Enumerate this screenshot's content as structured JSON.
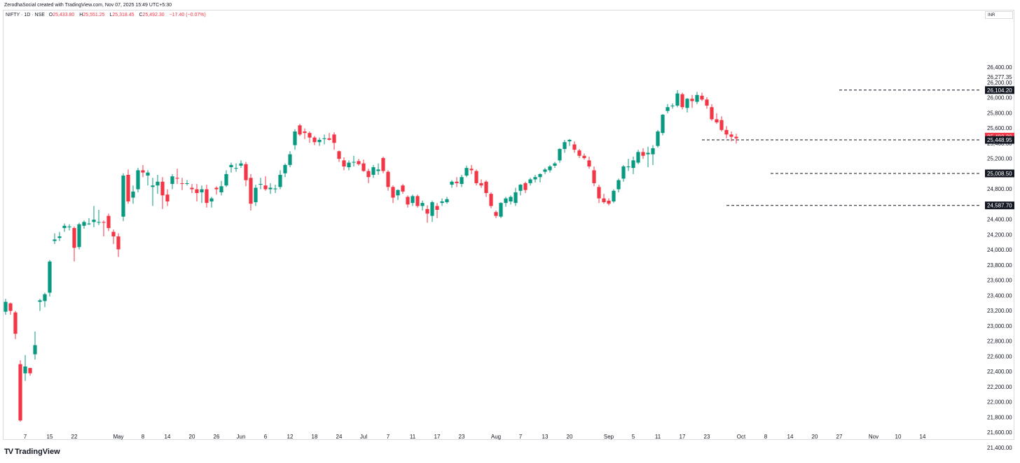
{
  "credit": "ZerodhaSocial created with TradingView.com, Nov 07, 2025 15:49 UTC+5:30",
  "legend": {
    "symbol": "NIFTY · 1D · NSE",
    "open_label": "O",
    "open": "25,433.80",
    "high_label": "H",
    "high": "25,551.25",
    "low_label": "L",
    "low": "25,318.45",
    "close_label": "C",
    "close": "25,492.30",
    "change": "−17.40 (−0.07%)"
  },
  "currency": "INR",
  "brand": {
    "logo": "TV",
    "name": "TradingView"
  },
  "colors": {
    "up": "#089981",
    "down": "#f23645",
    "grid": "#f0f3fa",
    "text": "#131722"
  },
  "chart_data": {
    "type": "candlestick",
    "y_axis_side": "right",
    "ylim": [
      21400,
      26500
    ],
    "y_ticks": [
      21400,
      21600,
      21800,
      22000,
      22200,
      22400,
      22600,
      22800,
      23000,
      23200,
      23400,
      23600,
      23800,
      24000,
      24200,
      24400,
      24600,
      24800,
      25000,
      25200,
      25400,
      25600,
      25800,
      26000,
      26200,
      26400
    ],
    "y_tick_labels": [
      "21,400.00",
      "21,600.00",
      "21,800.00",
      "22,000.00",
      "22,200.00",
      "22,400.00",
      "22,600.00",
      "22,800.00",
      "23,000.00",
      "23,200.00",
      "23,400.00",
      "23,600.00",
      "23,800.00",
      "24,000.00",
      "24,200.00",
      "24,400.00",
      "24,600.00",
      "24,800.00",
      "25,000.00",
      "25,200.00",
      "25,400.00",
      "25,600.00",
      "25,800.00",
      "26,000.00",
      "26,200.00",
      "26,400.00"
    ],
    "x_tick_labels": [
      {
        "i": 4,
        "label": "7"
      },
      {
        "i": 9,
        "label": "15"
      },
      {
        "i": 14,
        "label": "22"
      },
      {
        "i": 23,
        "label": "May"
      },
      {
        "i": 28,
        "label": "8"
      },
      {
        "i": 33,
        "label": "14"
      },
      {
        "i": 38,
        "label": "20"
      },
      {
        "i": 43,
        "label": "26"
      },
      {
        "i": 48,
        "label": "Jun"
      },
      {
        "i": 53,
        "label": "6"
      },
      {
        "i": 58,
        "label": "12"
      },
      {
        "i": 63,
        "label": "18"
      },
      {
        "i": 68,
        "label": "24"
      },
      {
        "i": 73,
        "label": "Jul"
      },
      {
        "i": 78,
        "label": "7"
      },
      {
        "i": 83,
        "label": "11"
      },
      {
        "i": 88,
        "label": "17"
      },
      {
        "i": 93,
        "label": "23"
      },
      {
        "i": 100,
        "label": "Aug"
      },
      {
        "i": 105,
        "label": "7"
      },
      {
        "i": 110,
        "label": "13"
      },
      {
        "i": 115,
        "label": "20"
      },
      {
        "i": 123,
        "label": "Sep"
      },
      {
        "i": 128,
        "label": "5"
      },
      {
        "i": 133,
        "label": "11"
      },
      {
        "i": 138,
        "label": "17"
      },
      {
        "i": 143,
        "label": "23"
      },
      {
        "i": 150,
        "label": "Oct"
      },
      {
        "i": 155,
        "label": "8"
      },
      {
        "i": 160,
        "label": "14"
      },
      {
        "i": 165,
        "label": "20"
      },
      {
        "i": 170,
        "label": "27"
      },
      {
        "i": 177,
        "label": "Nov"
      },
      {
        "i": 182,
        "label": "10"
      },
      {
        "i": 187,
        "label": "14"
      }
    ],
    "price_labels": [
      {
        "value": "26,277.35",
        "price": 26277.35,
        "style": "plain"
      },
      {
        "value": "26,104.20",
        "price": 26104.2,
        "style": "black"
      },
      {
        "value": "25,492.30",
        "price": 25492.3,
        "style": "red"
      },
      {
        "value": "25,448.95",
        "price": 25448.95,
        "style": "black"
      },
      {
        "value": "25,008.50",
        "price": 25008.5,
        "style": "black"
      },
      {
        "value": "24,587.70",
        "price": 24587.7,
        "style": "black"
      }
    ],
    "hlines": [
      {
        "price": 26104.2,
        "from": 170
      },
      {
        "price": 25448.95,
        "from": 142
      },
      {
        "price": 25008.5,
        "from": 156
      },
      {
        "price": 24587.7,
        "from": 147
      }
    ],
    "candles": [
      [
        23190,
        23360,
        23150,
        23320
      ],
      [
        23300,
        23310,
        23150,
        23200
      ],
      [
        23180,
        23200,
        22830,
        22900
      ],
      [
        22500,
        22550,
        21743,
        21760
      ],
      [
        22380,
        22620,
        22280,
        22470
      ],
      [
        22450,
        22450,
        22350,
        22380
      ],
      [
        22630,
        22930,
        22560,
        22750
      ],
      [
        23320,
        23360,
        23200,
        23340
      ],
      [
        23330,
        23440,
        23250,
        23420
      ],
      [
        23440,
        23870,
        23390,
        23850
      ],
      [
        24120,
        24220,
        24080,
        24140
      ],
      [
        24160,
        24240,
        24120,
        24180
      ],
      [
        24290,
        24350,
        24240,
        24320
      ],
      [
        24300,
        24340,
        24260,
        24310
      ],
      [
        24290,
        24310,
        23850,
        24030
      ],
      [
        24040,
        24360,
        24010,
        24340
      ],
      [
        24320,
        24390,
        24280,
        24370
      ],
      [
        24340,
        24420,
        24330,
        24350
      ],
      [
        24370,
        24580,
        24300,
        24400
      ],
      [
        24370,
        24530,
        24330,
        24370
      ],
      [
        24370,
        24390,
        24180,
        24360
      ],
      [
        24450,
        24480,
        24250,
        24290
      ],
      [
        24240,
        24270,
        24080,
        24180
      ],
      [
        24180,
        24220,
        23910,
        24010
      ],
      [
        24440,
        25010,
        24380,
        24980
      ],
      [
        24990,
        25060,
        24610,
        24640
      ],
      [
        24690,
        24850,
        24610,
        24770
      ],
      [
        24800,
        25080,
        24760,
        25050
      ],
      [
        25050,
        25120,
        24960,
        25020
      ],
      [
        24980,
        25050,
        24850,
        25020
      ],
      [
        24830,
        24950,
        24580,
        24850
      ],
      [
        24850,
        24990,
        24740,
        24900
      ],
      [
        24900,
        24960,
        24540,
        24720
      ],
      [
        24730,
        24800,
        24580,
        24640
      ],
      [
        24870,
        25000,
        24800,
        24970
      ],
      [
        24950,
        25070,
        24870,
        24940
      ],
      [
        24880,
        24950,
        24790,
        24870
      ],
      [
        24870,
        24920,
        24850,
        24880
      ],
      [
        24820,
        24870,
        24750,
        24800
      ],
      [
        24800,
        24870,
        24640,
        24750
      ],
      [
        24760,
        24850,
        24620,
        24800
      ],
      [
        24800,
        24860,
        24560,
        24620
      ],
      [
        24640,
        24700,
        24560,
        24680
      ],
      [
        24820,
        24840,
        24730,
        24800
      ],
      [
        24760,
        24910,
        24720,
        24840
      ],
      [
        24850,
        25050,
        24830,
        25000
      ],
      [
        25090,
        25150,
        25020,
        25120
      ],
      [
        25080,
        25140,
        25030,
        25080
      ],
      [
        25110,
        25180,
        25080,
        25140
      ],
      [
        25130,
        25160,
        24840,
        24920
      ],
      [
        24950,
        25000,
        24520,
        24610
      ],
      [
        24630,
        24860,
        24580,
        24820
      ],
      [
        24860,
        24950,
        24800,
        24870
      ],
      [
        24850,
        24970,
        24780,
        24800
      ],
      [
        24800,
        24880,
        24740,
        24820
      ],
      [
        24800,
        24860,
        24750,
        24810
      ],
      [
        24830,
        25050,
        24800,
        24990
      ],
      [
        25010,
        25140,
        24960,
        25120
      ],
      [
        25120,
        25300,
        25090,
        25260
      ],
      [
        25380,
        25590,
        25320,
        25560
      ],
      [
        25640,
        25660,
        25500,
        25520
      ],
      [
        25560,
        25600,
        25460,
        25540
      ],
      [
        25540,
        25560,
        25410,
        25480
      ],
      [
        25480,
        25500,
        25380,
        25420
      ],
      [
        25420,
        25480,
        25370,
        25450
      ],
      [
        25460,
        25520,
        25390,
        25470
      ],
      [
        25470,
        25540,
        25440,
        25450
      ],
      [
        25520,
        25550,
        25320,
        25410
      ],
      [
        25300,
        25310,
        25160,
        25200
      ],
      [
        25180,
        25220,
        25050,
        25100
      ],
      [
        25090,
        25180,
        25050,
        25150
      ],
      [
        25150,
        25240,
        25100,
        25160
      ],
      [
        25170,
        25200,
        25110,
        25130
      ],
      [
        25140,
        25190,
        25030,
        25040
      ],
      [
        25040,
        25070,
        24880,
        24960
      ],
      [
        24990,
        25120,
        24950,
        25090
      ],
      [
        25040,
        25140,
        24990,
        25060
      ],
      [
        25210,
        25230,
        25010,
        25040
      ],
      [
        25030,
        25050,
        24780,
        24830
      ],
      [
        24830,
        24850,
        24620,
        24690
      ],
      [
        24720,
        24800,
        24660,
        24790
      ],
      [
        24850,
        24870,
        24740,
        24770
      ],
      [
        24700,
        24720,
        24560,
        24600
      ],
      [
        24620,
        24730,
        24580,
        24710
      ],
      [
        24710,
        24730,
        24560,
        24580
      ],
      [
        24580,
        24650,
        24520,
        24620
      ],
      [
        24540,
        24590,
        24360,
        24480
      ],
      [
        24450,
        24650,
        24370,
        24630
      ],
      [
        24580,
        24620,
        24420,
        24530
      ],
      [
        24620,
        24680,
        24580,
        24640
      ],
      [
        24630,
        24700,
        24610,
        24670
      ],
      [
        24860,
        24920,
        24820,
        24900
      ],
      [
        24900,
        24960,
        24830,
        24880
      ],
      [
        24870,
        24990,
        24830,
        24960
      ],
      [
        24980,
        25110,
        24960,
        25080
      ],
      [
        25070,
        25120,
        25000,
        25050
      ],
      [
        25040,
        25060,
        24850,
        24880
      ],
      [
        24880,
        24930,
        24820,
        24850
      ],
      [
        24900,
        24920,
        24700,
        24750
      ],
      [
        24740,
        24760,
        24550,
        24580
      ],
      [
        24500,
        24520,
        24420,
        24450
      ],
      [
        24440,
        24630,
        24420,
        24620
      ],
      [
        24620,
        24700,
        24570,
        24680
      ],
      [
        24640,
        24720,
        24600,
        24700
      ],
      [
        24620,
        24820,
        24580,
        24760
      ],
      [
        24780,
        24870,
        24720,
        24860
      ],
      [
        24880,
        24900,
        24750,
        24790
      ],
      [
        24880,
        24950,
        24850,
        24930
      ],
      [
        24930,
        24990,
        24890,
        24960
      ],
      [
        24960,
        25010,
        24890,
        25000
      ],
      [
        25030,
        25080,
        25000,
        25060
      ],
      [
        25050,
        25120,
        25020,
        25100
      ],
      [
        25110,
        25160,
        25080,
        25140
      ],
      [
        25180,
        25340,
        25150,
        25330
      ],
      [
        25330,
        25450,
        25280,
        25420
      ],
      [
        25430,
        25460,
        25370,
        25450
      ],
      [
        25390,
        25430,
        25280,
        25320
      ],
      [
        25310,
        25330,
        25210,
        25240
      ],
      [
        25240,
        25270,
        25190,
        25210
      ],
      [
        25180,
        25230,
        25070,
        25100
      ],
      [
        25050,
        25100,
        24840,
        24880
      ],
      [
        24830,
        24860,
        24620,
        24680
      ],
      [
        24680,
        24740,
        24610,
        24630
      ],
      [
        24650,
        24680,
        24587,
        24610
      ],
      [
        24640,
        24800,
        24620,
        24780
      ],
      [
        24800,
        24940,
        24760,
        24920
      ],
      [
        24940,
        25120,
        24900,
        25100
      ],
      [
        25090,
        25200,
        25040,
        25100
      ],
      [
        25080,
        25230,
        25000,
        25180
      ],
      [
        25150,
        25320,
        25130,
        25290
      ],
      [
        25290,
        25340,
        25200,
        25240
      ],
      [
        25260,
        25360,
        25090,
        25280
      ],
      [
        25260,
        25380,
        25120,
        25340
      ],
      [
        25370,
        25580,
        25350,
        25560
      ],
      [
        25540,
        25790,
        25510,
        25780
      ],
      [
        25830,
        25920,
        25800,
        25880
      ],
      [
        25890,
        25930,
        25860,
        25900
      ],
      [
        25900,
        26104,
        25880,
        26060
      ],
      [
        26050,
        26070,
        25850,
        25880
      ],
      [
        25870,
        26000,
        25810,
        25990
      ],
      [
        25990,
        26040,
        25870,
        25960
      ],
      [
        25950,
        26080,
        25920,
        26040
      ],
      [
        26030,
        26070,
        25960,
        25980
      ],
      [
        25980,
        26010,
        25860,
        25900
      ],
      [
        25880,
        25920,
        25700,
        25720
      ],
      [
        25720,
        25800,
        25660,
        25680
      ],
      [
        25710,
        25760,
        25560,
        25580
      ],
      [
        25580,
        25630,
        25470,
        25520
      ],
      [
        25520,
        25560,
        25430,
        25490
      ],
      [
        25490,
        25530,
        25400,
        25470
      ]
    ],
    "last_candle": {
      "open": 25433.8,
      "high": 25551.25,
      "low": 25318.45,
      "close": 25492.3
    }
  }
}
